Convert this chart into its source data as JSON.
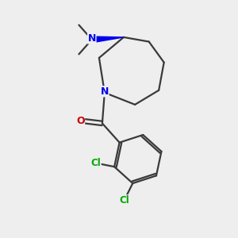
{
  "background_color": "#eeeeee",
  "bond_color": "#3a3a3a",
  "N_color": "#0000ee",
  "O_color": "#cc0000",
  "Cl_color": "#00aa00",
  "wedge_color": "#0000ee",
  "line_width": 1.6,
  "figsize": [
    3.0,
    3.0
  ],
  "dpi": 100,
  "xlim": [
    0,
    10
  ],
  "ylim": [
    0,
    10
  ]
}
